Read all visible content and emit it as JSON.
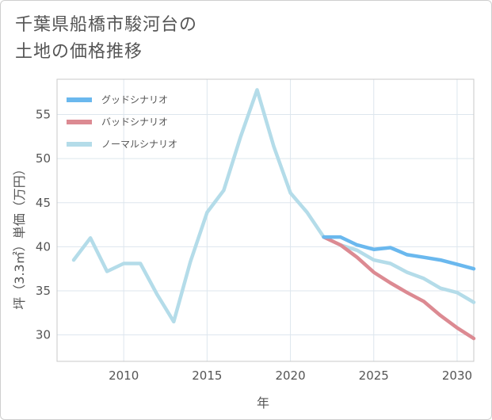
{
  "title_lines": [
    "千葉県船橋市駿河台の",
    "土地の価格推移"
  ],
  "chart_data": {
    "type": "line",
    "xlabel": "年",
    "ylabel": "坪（3.3㎡）単価（万円）",
    "xlim": [
      2006,
      2031
    ],
    "ylim": [
      27,
      59
    ],
    "xticks": [
      2010,
      2015,
      2020,
      2025,
      2030
    ],
    "yticks": [
      30,
      35,
      40,
      45,
      50,
      55
    ],
    "grid": true,
    "legend_position": "top-left",
    "series": [
      {
        "name": "グッドシナリオ",
        "color": "#6ab8ee",
        "x": [
          2022,
          2023,
          2024,
          2025,
          2026,
          2027,
          2028,
          2029,
          2030,
          2031
        ],
        "y": [
          41.1,
          41.1,
          40.2,
          39.7,
          39.9,
          39.1,
          38.8,
          38.5,
          38.0,
          37.5
        ]
      },
      {
        "name": "バッドシナリオ",
        "color": "#dc8a92",
        "x": [
          2022,
          2023,
          2024,
          2025,
          2026,
          2027,
          2028,
          2029,
          2030,
          2031
        ],
        "y": [
          41.1,
          40.2,
          38.8,
          37.1,
          35.9,
          34.8,
          33.8,
          32.2,
          30.8,
          29.6
        ]
      },
      {
        "name": "ノーマルシナリオ",
        "color": "#b4dce9",
        "x": [
          2007,
          2008,
          2009,
          2010,
          2011,
          2012,
          2013,
          2014,
          2015,
          2016,
          2017,
          2018,
          2019,
          2020,
          2021,
          2022,
          2023,
          2024,
          2025,
          2026,
          2027,
          2028,
          2029,
          2030,
          2031
        ],
        "y": [
          38.5,
          41.0,
          37.2,
          38.1,
          38.1,
          34.6,
          31.5,
          38.3,
          43.9,
          46.4,
          52.4,
          57.8,
          51.4,
          46.1,
          43.9,
          41.1,
          40.2,
          39.6,
          38.5,
          38.1,
          37.1,
          36.4,
          35.3,
          34.8,
          33.7
        ]
      }
    ]
  }
}
